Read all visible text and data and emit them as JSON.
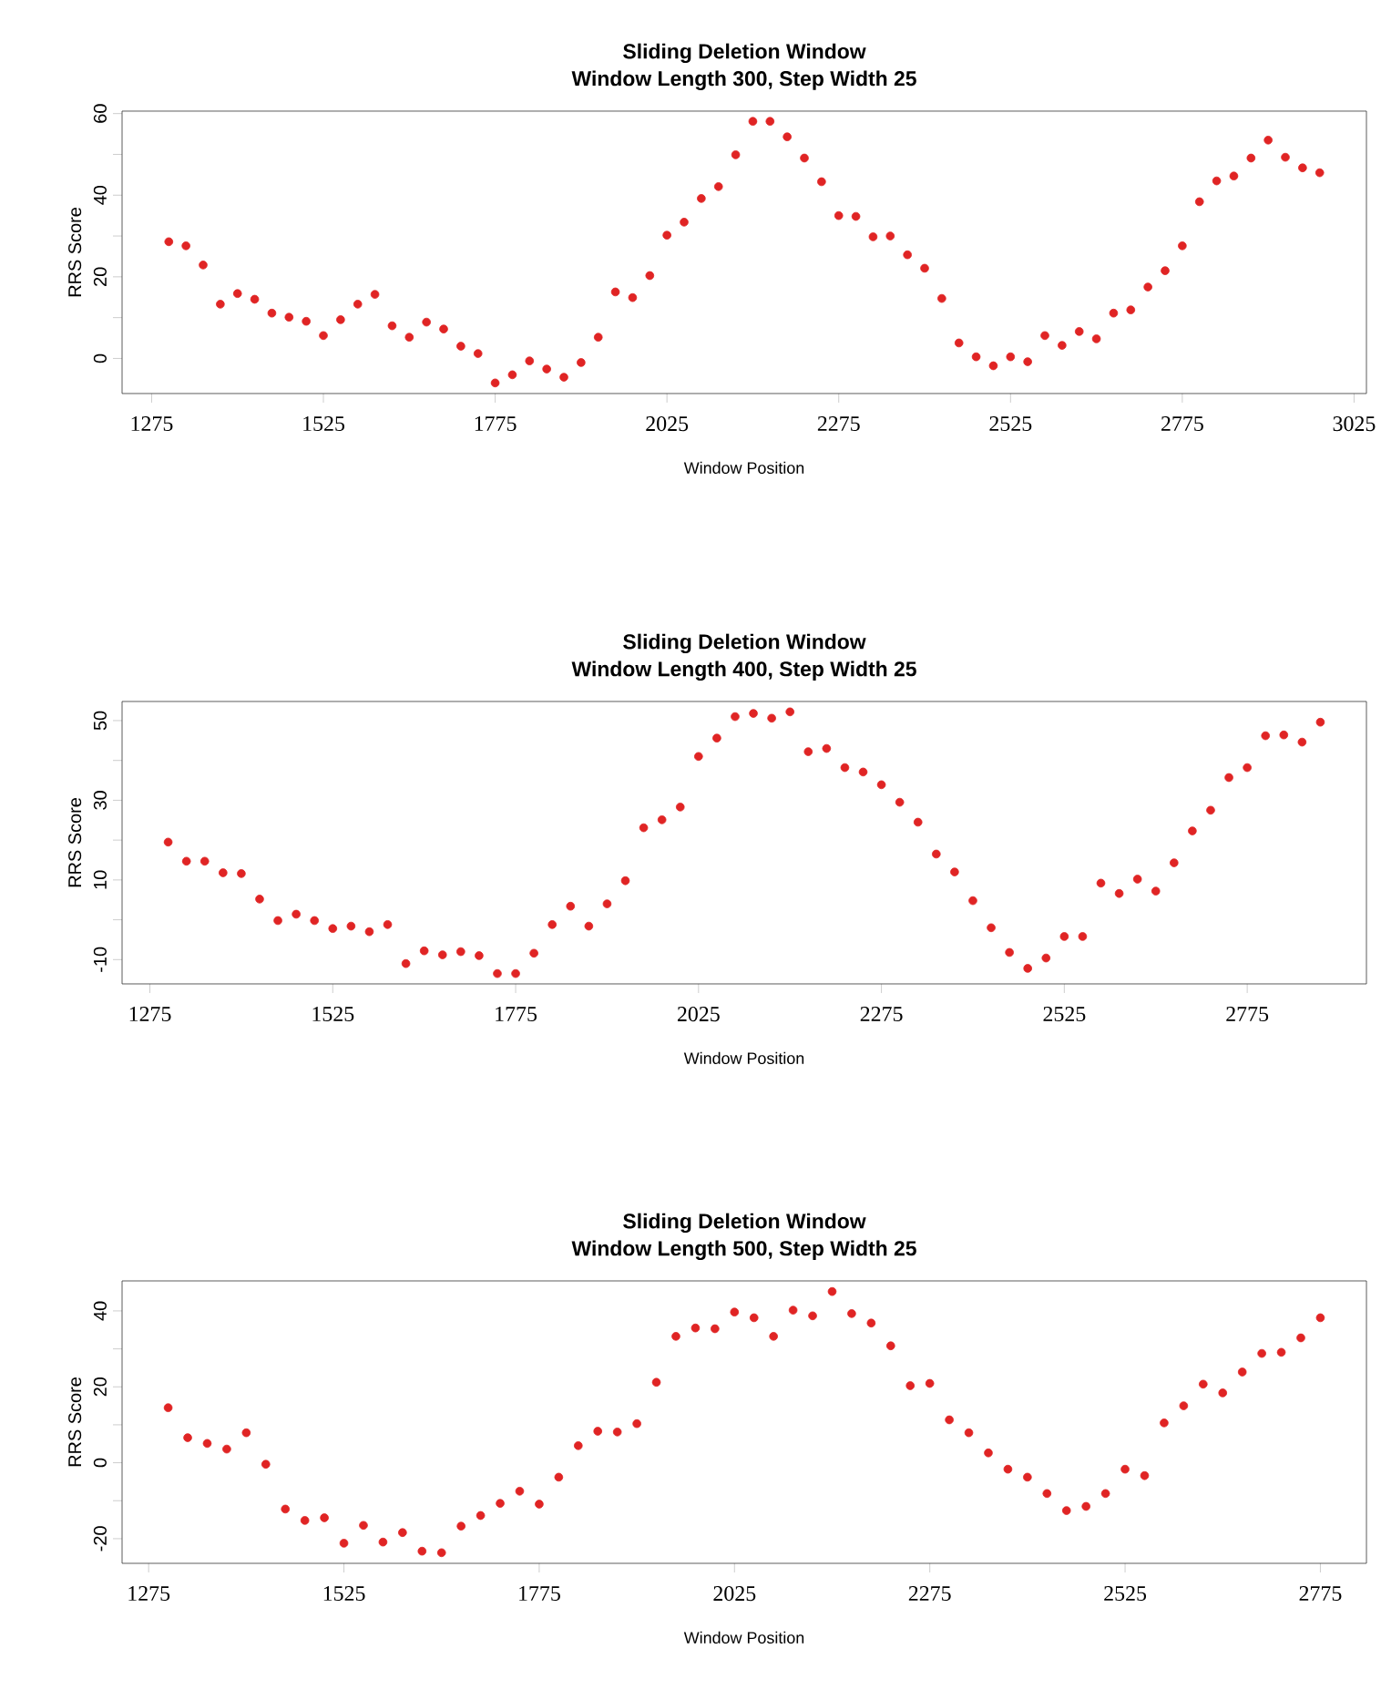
{
  "chart_data": [
    {
      "type": "scatter",
      "title": "Sliding Deletion Window",
      "subtitle": "Window Length 300, Step Width 25",
      "xlabel": "Window Position",
      "ylabel": "RRS Score",
      "color": "#e02424",
      "marker": "circle",
      "xlim": [
        1232,
        3043
      ],
      "ylim": [
        -8.6,
        60.6
      ],
      "xticks": [
        1275,
        1525,
        1775,
        2025,
        2275,
        2525,
        2775,
        3025
      ],
      "yticks": [
        0,
        {
          "value": 10,
          "label": null
        },
        20,
        {
          "value": 30,
          "label": null
        },
        40,
        {
          "value": 50,
          "label": null
        },
        60
      ],
      "x": [
        1300,
        1325,
        1350,
        1375,
        1400,
        1425,
        1450,
        1475,
        1500,
        1525,
        1550,
        1575,
        1600,
        1625,
        1650,
        1675,
        1700,
        1725,
        1750,
        1775,
        1800,
        1825,
        1850,
        1875,
        1900,
        1925,
        1950,
        1975,
        2000,
        2025,
        2050,
        2075,
        2100,
        2125,
        2150,
        2175,
        2200,
        2225,
        2250,
        2275,
        2300,
        2325,
        2350,
        2375,
        2400,
        2425,
        2450,
        2475,
        2500,
        2525,
        2550,
        2575,
        2600,
        2625,
        2650,
        2675,
        2700,
        2725,
        2750,
        2775,
        2800,
        2825,
        2850,
        2875,
        2900,
        2925,
        2950,
        2975
      ],
      "values": [
        28.6,
        27.6,
        22.9,
        13.3,
        15.9,
        14.5,
        11.1,
        10.1,
        9.1,
        5.6,
        9.5,
        13.3,
        15.7,
        8.0,
        5.2,
        8.9,
        7.2,
        3.0,
        1.2,
        -6.0,
        -4.0,
        -0.6,
        -2.6,
        -4.6,
        -1.0,
        5.2,
        16.3,
        14.9,
        20.3,
        30.2,
        33.4,
        39.2,
        42.1,
        49.9,
        58.1,
        58.1,
        54.3,
        49.1,
        43.3,
        35.0,
        34.8,
        29.8,
        30.0,
        25.4,
        22.1,
        14.7,
        3.8,
        0.4,
        -1.8,
        0.4,
        -0.8,
        5.6,
        3.2,
        6.6,
        4.8,
        11.1,
        11.9,
        17.5,
        21.5,
        27.6,
        38.4,
        43.5,
        44.7,
        49.1,
        53.5,
        49.3,
        46.7,
        45.5
      ]
    },
    {
      "type": "scatter",
      "title": "Sliding Deletion Window",
      "subtitle": "Window Length 400, Step Width 25",
      "xlabel": "Window Position",
      "ylabel": "RRS Score",
      "color": "#e02424",
      "marker": "circle",
      "xlim": [
        1237,
        2938
      ],
      "ylim": [
        -16.1,
        54.8
      ],
      "xticks": [
        1275,
        1525,
        1775,
        2025,
        2275,
        2525,
        2775
      ],
      "yticks": [
        -10,
        {
          "value": 0,
          "label": null
        },
        10,
        {
          "value": 20,
          "label": null
        },
        30,
        {
          "value": 40,
          "label": null
        },
        50
      ],
      "x": [
        1300,
        1325,
        1350,
        1375,
        1400,
        1425,
        1450,
        1475,
        1500,
        1525,
        1550,
        1575,
        1600,
        1625,
        1650,
        1675,
        1700,
        1725,
        1750,
        1775,
        1800,
        1825,
        1850,
        1875,
        1900,
        1925,
        1950,
        1975,
        2000,
        2025,
        2050,
        2075,
        2100,
        2125,
        2150,
        2175,
        2200,
        2225,
        2250,
        2275,
        2300,
        2325,
        2350,
        2375,
        2400,
        2425,
        2450,
        2475,
        2500,
        2525,
        2550,
        2575,
        2600,
        2625,
        2650,
        2675,
        2700,
        2725,
        2750,
        2775,
        2800,
        2825,
        2850,
        2875
      ],
      "values": [
        19.5,
        14.7,
        14.7,
        11.8,
        11.6,
        5.2,
        -0.2,
        1.4,
        -0.2,
        -2.2,
        -1.6,
        -3.0,
        -1.2,
        -11.0,
        -7.8,
        -8.8,
        -8.0,
        -9.0,
        -13.5,
        -13.5,
        -8.4,
        -1.2,
        3.4,
        -1.6,
        4.0,
        9.8,
        23.1,
        25.1,
        28.3,
        41.0,
        45.6,
        51.0,
        51.8,
        50.6,
        52.2,
        42.2,
        43.0,
        38.2,
        37.1,
        33.9,
        29.5,
        24.5,
        16.5,
        12.0,
        4.8,
        -2.0,
        -8.2,
        -12.2,
        -9.6,
        -4.2,
        -4.2,
        9.2,
        6.6,
        10.2,
        7.2,
        14.3,
        22.3,
        27.5,
        35.7,
        38.2,
        46.2,
        46.4,
        44.6,
        49.6
      ]
    },
    {
      "type": "scatter",
      "title": "Sliding Deletion Window",
      "subtitle": "Window Length 500, Step Width 25",
      "xlabel": "Window Position",
      "ylabel": "RRS Score",
      "color": "#e02424",
      "marker": "circle",
      "xlim": [
        1241,
        2834
      ],
      "ylim": [
        -26.5,
        47.9
      ],
      "xticks": [
        1275,
        1525,
        1775,
        2025,
        2275,
        2525,
        2775
      ],
      "yticks": [
        -20,
        {
          "value": -10,
          "label": null
        },
        0,
        {
          "value": 10,
          "label": null
        },
        20,
        {
          "value": 30,
          "label": null
        },
        40
      ],
      "x": [
        1300,
        1325,
        1350,
        1375,
        1400,
        1425,
        1450,
        1475,
        1500,
        1525,
        1550,
        1575,
        1600,
        1625,
        1650,
        1675,
        1700,
        1725,
        1750,
        1775,
        1800,
        1825,
        1850,
        1875,
        1900,
        1925,
        1950,
        1975,
        2000,
        2025,
        2050,
        2075,
        2100,
        2125,
        2150,
        2175,
        2200,
        2225,
        2250,
        2275,
        2300,
        2325,
        2350,
        2375,
        2400,
        2425,
        2450,
        2475,
        2500,
        2525,
        2550,
        2575,
        2600,
        2625,
        2650,
        2675,
        2700,
        2725,
        2750,
        2775
      ],
      "values": [
        14.5,
        6.6,
        5.1,
        3.6,
        7.9,
        -0.4,
        -12.2,
        -15.2,
        -14.5,
        -21.2,
        -16.5,
        -20.9,
        -18.4,
        -23.3,
        -23.7,
        -16.7,
        -13.9,
        -10.7,
        -7.5,
        -10.9,
        -3.8,
        4.5,
        8.3,
        8.1,
        10.3,
        21.2,
        33.3,
        35.5,
        35.3,
        39.7,
        38.2,
        33.3,
        40.2,
        38.7,
        45.1,
        39.3,
        36.8,
        30.8,
        20.3,
        20.9,
        11.3,
        7.9,
        2.6,
        -1.7,
        -3.8,
        -8.1,
        -12.6,
        -11.5,
        -8.1,
        -1.7,
        -3.4,
        10.5,
        15.0,
        20.7,
        18.4,
        23.9,
        28.8,
        29.1,
        32.9,
        38.2
      ]
    }
  ]
}
